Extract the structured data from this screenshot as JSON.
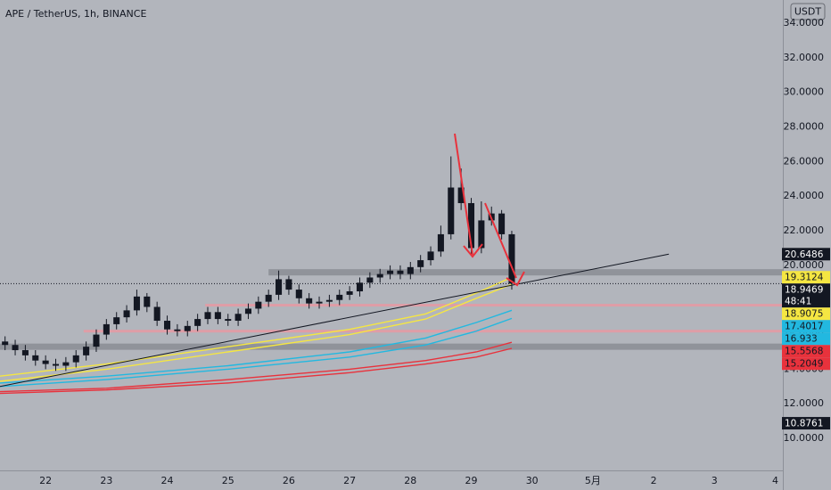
{
  "chart_data": {
    "type": "candlestick",
    "title": "APE / TetherUS, 1h, BINANCE",
    "currency": "USDT",
    "countdown": "48:41",
    "xlim": [
      -18,
      291
    ],
    "ylim": [
      8.15,
      35.34
    ],
    "xticks": [
      {
        "value": 0,
        "label": "22"
      },
      {
        "value": 24,
        "label": "23"
      },
      {
        "value": 48,
        "label": "24"
      },
      {
        "value": 72,
        "label": "25"
      },
      {
        "value": 96,
        "label": "26"
      },
      {
        "value": 120,
        "label": "27"
      },
      {
        "value": 144,
        "label": "28"
      },
      {
        "value": 168,
        "label": "29"
      },
      {
        "value": 192,
        "label": "30"
      },
      {
        "value": 216,
        "label": "5月"
      },
      {
        "value": 240,
        "label": "2"
      },
      {
        "value": 264,
        "label": "3"
      },
      {
        "value": 288,
        "label": "4"
      }
    ],
    "yticks": [
      {
        "value": 10,
        "label": "10.0000"
      },
      {
        "value": 12,
        "label": "12.0000"
      },
      {
        "value": 14,
        "label": "14.0000"
      },
      {
        "value": 16,
        "label": "16.0000"
      },
      {
        "value": 18,
        "label": "18.0000"
      },
      {
        "value": 20,
        "label": "20.0000"
      },
      {
        "value": 22,
        "label": "22.0000"
      },
      {
        "value": 24,
        "label": "24.0000"
      },
      {
        "value": 26,
        "label": "26.0000"
      },
      {
        "value": 28,
        "label": "28.0000"
      },
      {
        "value": 30,
        "label": "30.0000"
      },
      {
        "value": 32,
        "label": "32.0000"
      },
      {
        "value": 34,
        "label": "34.0000"
      }
    ],
    "candle_color": "#131722",
    "x": [
      -16,
      -12,
      -8,
      -4,
      0,
      4,
      8,
      12,
      16,
      20,
      24,
      28,
      32,
      36,
      40,
      44,
      48,
      52,
      56,
      60,
      64,
      68,
      72,
      76,
      80,
      84,
      88,
      92,
      96,
      100,
      104,
      108,
      112,
      116,
      120,
      124,
      128,
      132,
      136,
      140,
      144,
      148,
      152,
      156,
      160,
      164,
      168,
      172,
      176,
      180,
      184
    ],
    "open": [
      15.6,
      15.4,
      15.1,
      14.8,
      14.5,
      14.3,
      14.2,
      14.4,
      14.8,
      15.3,
      16.0,
      16.6,
      17.0,
      17.4,
      18.2,
      17.6,
      16.8,
      16.3,
      16.2,
      16.5,
      16.9,
      17.3,
      16.9,
      16.8,
      17.2,
      17.5,
      17.9,
      18.3,
      19.2,
      18.6,
      18.1,
      17.8,
      17.9,
      18.0,
      18.3,
      18.5,
      19.0,
      19.3,
      19.5,
      19.7,
      19.5,
      19.9,
      20.3,
      20.8,
      21.8,
      24.5,
      23.6,
      21.0,
      22.6,
      23.0,
      21.8
    ],
    "high": [
      15.9,
      15.7,
      15.4,
      15.1,
      14.8,
      14.6,
      14.7,
      15.1,
      15.6,
      16.3,
      16.9,
      17.3,
      17.7,
      18.6,
      18.4,
      17.9,
      17.1,
      16.6,
      16.8,
      17.2,
      17.6,
      17.6,
      17.2,
      17.5,
      17.8,
      18.2,
      18.6,
      19.7,
      19.4,
      18.9,
      18.4,
      18.2,
      18.3,
      18.6,
      18.8,
      19.3,
      19.6,
      19.8,
      20.0,
      20.0,
      20.2,
      20.6,
      21.1,
      22.3,
      26.3,
      25.6,
      23.9,
      23.7,
      23.4,
      23.2,
      22.0
    ],
    "low": [
      15.1,
      14.8,
      14.5,
      14.2,
      14.0,
      13.9,
      13.9,
      14.1,
      14.5,
      15.0,
      15.7,
      16.3,
      16.7,
      17.1,
      17.3,
      16.5,
      16.0,
      15.9,
      15.9,
      16.2,
      16.6,
      16.6,
      16.5,
      16.5,
      16.9,
      17.2,
      17.6,
      18.0,
      18.3,
      17.8,
      17.5,
      17.5,
      17.6,
      17.7,
      18.0,
      18.2,
      18.7,
      19.0,
      19.2,
      19.2,
      19.2,
      19.6,
      20.0,
      20.5,
      21.5,
      23.2,
      20.6,
      20.7,
      22.3,
      21.5,
      18.6
    ],
    "close": [
      15.4,
      15.1,
      14.8,
      14.5,
      14.3,
      14.2,
      14.4,
      14.8,
      15.3,
      16.0,
      16.6,
      17.0,
      17.4,
      18.2,
      17.6,
      16.8,
      16.3,
      16.2,
      16.5,
      16.9,
      17.3,
      16.9,
      16.8,
      17.2,
      17.5,
      17.9,
      18.3,
      19.2,
      18.6,
      18.1,
      17.8,
      17.9,
      18.0,
      18.3,
      18.5,
      19.0,
      19.3,
      19.5,
      19.7,
      19.5,
      19.9,
      20.3,
      20.8,
      21.8,
      24.5,
      23.6,
      21.0,
      22.6,
      23.0,
      21.8,
      18.9469
    ],
    "ma_x": [
      -18,
      24,
      72,
      120,
      150,
      170,
      184
    ],
    "moving_averages": [
      {
        "color": "#f5e642",
        "values": [
          13.6,
          14.3,
          15.3,
          16.3,
          17.2,
          18.4,
          19.3124
        ]
      },
      {
        "color": "#f5e642",
        "values": [
          13.3,
          14.0,
          15.0,
          16.0,
          16.9,
          18.1,
          18.9075
        ]
      },
      {
        "color": "#22b8e0",
        "values": [
          13.2,
          13.6,
          14.2,
          15.0,
          15.8,
          16.7,
          17.4017
        ]
      },
      {
        "color": "#22b8e0",
        "values": [
          13.0,
          13.4,
          14.0,
          14.7,
          15.4,
          16.2,
          16.933
        ]
      },
      {
        "color": "#e8323c",
        "values": [
          12.7,
          12.9,
          13.4,
          14.0,
          14.5,
          15.0,
          15.5568
        ]
      },
      {
        "color": "#e8323c",
        "values": [
          12.6,
          12.8,
          13.2,
          13.8,
          14.3,
          14.7,
          15.2049
        ]
      }
    ],
    "trendline": {
      "color": "#131722",
      "x": [
        -18,
        246
      ],
      "y": [
        13.0,
        20.6486
      ]
    },
    "zones": [
      {
        "value": 19.6,
        "x_start": 88,
        "color": "#8a8d94"
      },
      {
        "value": 15.3,
        "x_start": -18,
        "color": "#8a8d94"
      }
    ],
    "levels": [
      {
        "value": 17.7,
        "x_start": 63,
        "color": "#e39aa3"
      },
      {
        "value": 16.2,
        "x_start": 15,
        "color": "#e39aa3"
      }
    ],
    "price_marker": 10.8761
  }
}
